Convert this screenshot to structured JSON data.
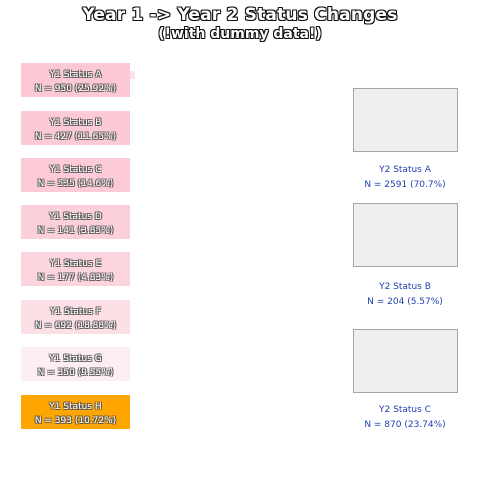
{
  "title": "Year 1 -> Year 2 Status Changes",
  "subtitle": "(!with dummy data!)",
  "year1_nodes": [
    {
      "label": "Y1 Status A",
      "count_text": "N = 950 (25.92%)",
      "count": 950,
      "percent": 25.92,
      "color": "#fcc8d4"
    },
    {
      "label": "Y1 Status B",
      "count_text": "N = 427 (11.65%)",
      "count": 427,
      "percent": 11.65,
      "color": "#fccad6"
    },
    {
      "label": "Y1 Status C",
      "count_text": "N = 535 (14.6%)",
      "count": 535,
      "percent": 14.6,
      "color": "#fccbd7"
    },
    {
      "label": "Y1 Status D",
      "count_text": "N = 141 (3.85%)",
      "count": 141,
      "percent": 3.85,
      "color": "#fcd0da"
    },
    {
      "label": "Y1 Status E",
      "count_text": "N = 177 (4.83%)",
      "count": 177,
      "percent": 4.83,
      "color": "#fcd4de"
    },
    {
      "label": "Y1 Status F",
      "count_text": "N = 692 (18.88%)",
      "count": 692,
      "percent": 18.88,
      "color": "#fde0e6"
    },
    {
      "label": "Y1 Status G",
      "count_text": "N = 350 (9.55%)",
      "count": 350,
      "percent": 9.55,
      "color": "#fdeef1"
    },
    {
      "label": "Y1 Status H",
      "count_text": "N = 393 (10.72%)",
      "count": 393,
      "percent": 10.72,
      "color": "#ffa500"
    }
  ],
  "year2_nodes": [
    {
      "label": "Y2 Status A",
      "count_text": "N = 2591 (70.7%)",
      "count": 2591,
      "percent": 70.7
    },
    {
      "label": "Y2 Status B",
      "count_text": "N = 204 (5.57%)",
      "count": 204,
      "percent": 5.57
    },
    {
      "label": "Y2 Status C",
      "count_text": "N = 870 (23.74%)",
      "count": 870,
      "percent": 23.74
    }
  ],
  "colors": {
    "y2_box_fill": "#eeeeee",
    "y2_box_border": "#a6a6a6",
    "y2_text": "#1f3fb2"
  }
}
